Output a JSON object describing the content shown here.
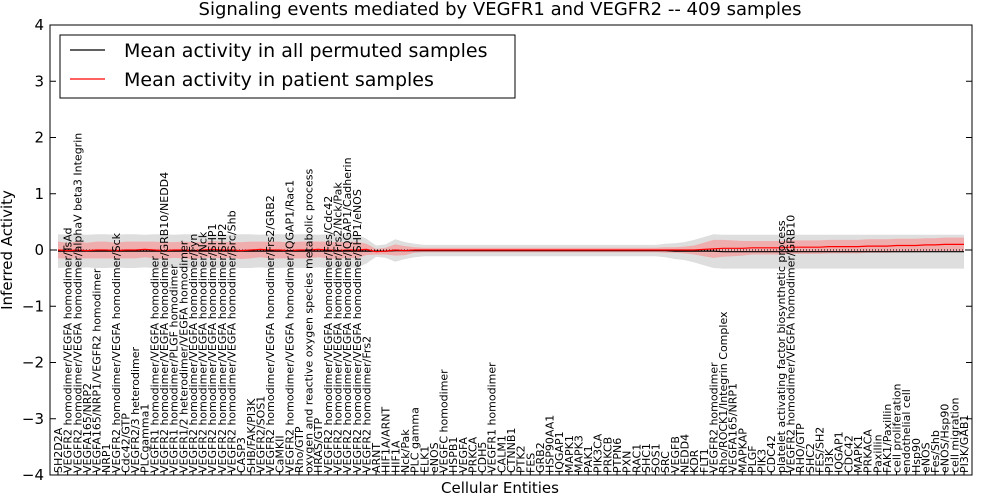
{
  "chart_data": {
    "type": "line",
    "title": "Signaling events mediated by VEGFR1 and VEGFR2 -- 409 samples",
    "xlabel": "Cellular Entities",
    "ylabel": "Inferred Activity",
    "ylim": [
      -4,
      4
    ],
    "yticks": [
      -4,
      -3,
      -2,
      -1,
      0,
      1,
      2,
      3,
      4
    ],
    "legend_position": "top-left",
    "colors": {
      "permuted": "#000000",
      "patient": "#ff0000",
      "patient_band": "#f4a0a0",
      "permuted_band": "#c8c8c8"
    },
    "series": [
      {
        "name": "Mean activity in all permuted samples",
        "color": "#000000"
      },
      {
        "name": "Mean activity in patient samples",
        "color": "#ff0000"
      }
    ],
    "categories": [
      "SH2D2A",
      "VEGFR2 homodimer/VEGFA homodimer/TsAd",
      "VEGFR2 homodimer/VEGFA homodimer/alphaV beta3 Integrin",
      "VEGFA165/NRP2",
      "VEGFA165/NRP1/VEGFR2 homodimer",
      "NRP1",
      "VEGFR2 homodimer/VEGFA homodimer/Sck",
      "Cdc42/GTP",
      "VEGFR2/3 heterodimer",
      "PLCgamma1",
      "VEGFR1 homodimer/VEGFA homodimer",
      "VEGFR2 homodimer/VEGFA homodimer/GRB10/NEDD4",
      "VEGFR1 homodimer/PLGF homodimer",
      "VEGFR1/2 heterodimer/VEGFA homodimer",
      "VEGFR2 homodimer/VEGFA homodimer/Fyn",
      "VEGFR2 homodimer/VEGFA homodimer/Nck",
      "VEGFR2 homodimer/VEGFA homodimer/SHP1",
      "VEGFR2 homodimer/VEGFA homodimer/SHP2",
      "VEGFR2 homodimer/VEGFA homodimer/Src/Shb",
      "CASP3",
      "SHB/FAK/PI3K",
      "VEGFR2/SOS1",
      "VEGFR2 homodimer/VEGFA homodimer/Frs2/GRB2",
      "CaMKII",
      "VEGFR2 homodimer/VEGFA homodimer/IQGAP1/Rac1",
      "Rho/GTP",
      "oxygen and reactive oxygen species metabolic process",
      "HRAS/GTP",
      "VEGFR2 homodimer/VEGFA homodimer/Fes/Cdc42",
      "VEGFR2 homodimer/VEGFA homodimer/Frs2/Nck/Pak",
      "VEGFR2 homodimer/VEGFA homodimer/IQGAP1/Cadherin",
      "VEGFR2 homodimer/VEGFA homodimer/SHP1/eNOS",
      "VEGFR2 homodimer/Frs2",
      "ARNT",
      "HIF1A/ARNT",
      "HIF1A",
      "Nck/Pak",
      "PLC gamma",
      "ELK1",
      "eNOS",
      "VEGFC homodimer",
      "HSPB1",
      "VEGFA",
      "PRKCA",
      "CDH5",
      "VEGFR1 homodimer",
      "CALM1",
      "CTNNB1",
      "PTK2",
      "FES",
      "GRB2",
      "HSP90AA1",
      "IQGAP1",
      "MAPK1",
      "MAPK3",
      "PAK1",
      "PIK3CA",
      "PRKCB",
      "PTPN6",
      "PXN",
      "RAC1",
      "SHC1",
      "SOS1",
      "SRC",
      "VEGFB",
      "NEDD4",
      "KDR",
      "FLT1",
      "VEGFR2 homodimer",
      "Rho/ROCK1/Integrin Complex",
      "VEGFA165/NRP1",
      "MAPKAP",
      "PLGF",
      "PIK3",
      "CDC42",
      "platelet activating factor biosynthetic process",
      "VEGFR2 homodimer/VEGFA homodimer/GRB10",
      "RHO/GTP",
      "SHC2",
      "FES/SH2",
      "PI3K",
      "IQGAP1",
      "CDC42",
      "MAPK1",
      "PRKACA",
      "Paxillin",
      "FAK1/Paxillin",
      "cell proliferation",
      "endothelial cell",
      "Hsp90",
      "eNOS",
      "Fes/Shb",
      "eNOS/Hsp90",
      "cell migration",
      "PI3K/GAB1"
    ],
    "patient_mean": [
      0.0,
      -0.01,
      0.0,
      -0.01,
      0.0,
      0.0,
      -0.01,
      0.0,
      0.0,
      0.01,
      0.0,
      -0.01,
      0.0,
      0.0,
      -0.01,
      0.0,
      0.01,
      0.0,
      0.0,
      -0.01,
      0.0,
      0.01,
      0.0,
      0.0,
      -0.01,
      0.0,
      0.0,
      0.01,
      0.0,
      -0.01,
      0.0,
      0.0,
      0.01,
      -0.03,
      -0.02,
      0.0,
      -0.01,
      0.0,
      0.0,
      0.0,
      0.0,
      0.0,
      0.0,
      0.0,
      0.0,
      0.0,
      0.0,
      0.0,
      0.0,
      0.0,
      0.0,
      0.0,
      0.0,
      0.0,
      0.0,
      0.0,
      0.0,
      0.0,
      0.0,
      0.0,
      0.0,
      0.0,
      0.0,
      0.0,
      0.0,
      0.0,
      0.0,
      0.01,
      0.02,
      0.03,
      0.03,
      0.03,
      0.04,
      0.04,
      0.04,
      0.04,
      0.05,
      0.05,
      0.05,
      0.05,
      0.06,
      0.06,
      0.06,
      0.06,
      0.07,
      0.07,
      0.07,
      0.08,
      0.08,
      0.08,
      0.09,
      0.09,
      0.1,
      0.1,
      0.1
    ],
    "patient_band": [
      0.15,
      0.14,
      0.15,
      0.14,
      0.15,
      0.15,
      0.14,
      0.15,
      0.15,
      0.14,
      0.15,
      0.15,
      0.14,
      0.15,
      0.15,
      0.14,
      0.15,
      0.15,
      0.14,
      0.15,
      0.15,
      0.14,
      0.15,
      0.15,
      0.14,
      0.15,
      0.15,
      0.14,
      0.15,
      0.15,
      0.14,
      0.15,
      0.1,
      0.05,
      0.06,
      0.1,
      0.08,
      0.05,
      0.04,
      0.04,
      0.04,
      0.04,
      0.04,
      0.04,
      0.04,
      0.04,
      0.04,
      0.04,
      0.04,
      0.04,
      0.04,
      0.04,
      0.04,
      0.04,
      0.04,
      0.04,
      0.04,
      0.04,
      0.04,
      0.04,
      0.04,
      0.04,
      0.04,
      0.05,
      0.05,
      0.06,
      0.08,
      0.12,
      0.16,
      0.15,
      0.14,
      0.13,
      0.12,
      0.12,
      0.12,
      0.12,
      0.12,
      0.12,
      0.12,
      0.12,
      0.12,
      0.12,
      0.12,
      0.12,
      0.12,
      0.12,
      0.12,
      0.12,
      0.12,
      0.12,
      0.12,
      0.12,
      0.12,
      0.12,
      0.12
    ],
    "permuted_mean": [
      -0.02,
      -0.02,
      -0.02,
      -0.02,
      -0.02,
      -0.02,
      -0.02,
      -0.02,
      -0.02,
      -0.02,
      -0.02,
      -0.02,
      -0.02,
      -0.02,
      -0.02,
      -0.02,
      -0.02,
      -0.02,
      -0.02,
      -0.02,
      -0.02,
      -0.02,
      -0.02,
      -0.02,
      -0.02,
      -0.02,
      -0.02,
      -0.02,
      -0.02,
      -0.02,
      -0.02,
      -0.02,
      -0.02,
      -0.02,
      -0.02,
      -0.01,
      -0.01,
      -0.01,
      -0.01,
      -0.01,
      -0.01,
      -0.01,
      -0.01,
      -0.01,
      -0.01,
      -0.01,
      -0.01,
      -0.01,
      -0.01,
      -0.01,
      -0.01,
      -0.01,
      -0.01,
      -0.01,
      -0.01,
      -0.01,
      -0.01,
      -0.01,
      -0.01,
      -0.01,
      -0.01,
      -0.01,
      -0.01,
      -0.01,
      -0.02,
      -0.02,
      -0.02,
      -0.02,
      -0.02,
      -0.03,
      -0.03,
      -0.03,
      -0.03,
      -0.03,
      -0.03,
      -0.03,
      -0.03,
      -0.03,
      -0.03,
      -0.03,
      -0.03,
      -0.03,
      -0.03,
      -0.03,
      -0.03,
      -0.03,
      -0.03,
      -0.03,
      -0.03,
      -0.03,
      -0.03,
      -0.03,
      -0.03,
      -0.03,
      -0.03
    ],
    "permuted_band": [
      0.3,
      0.29,
      0.3,
      0.29,
      0.3,
      0.3,
      0.29,
      0.3,
      0.3,
      0.29,
      0.3,
      0.3,
      0.29,
      0.3,
      0.3,
      0.29,
      0.3,
      0.3,
      0.29,
      0.3,
      0.3,
      0.29,
      0.3,
      0.3,
      0.29,
      0.3,
      0.3,
      0.29,
      0.3,
      0.3,
      0.29,
      0.3,
      0.22,
      0.1,
      0.12,
      0.2,
      0.15,
      0.12,
      0.1,
      0.1,
      0.1,
      0.1,
      0.1,
      0.1,
      0.1,
      0.1,
      0.1,
      0.1,
      0.1,
      0.1,
      0.1,
      0.1,
      0.1,
      0.1,
      0.1,
      0.1,
      0.1,
      0.1,
      0.1,
      0.1,
      0.1,
      0.1,
      0.1,
      0.12,
      0.14,
      0.16,
      0.2,
      0.25,
      0.3,
      0.3,
      0.3,
      0.3,
      0.3,
      0.3,
      0.3,
      0.3,
      0.3,
      0.3,
      0.3,
      0.3,
      0.3,
      0.3,
      0.3,
      0.3,
      0.3,
      0.3,
      0.3,
      0.3,
      0.3,
      0.3,
      0.3,
      0.3,
      0.3,
      0.3,
      0.3
    ]
  }
}
